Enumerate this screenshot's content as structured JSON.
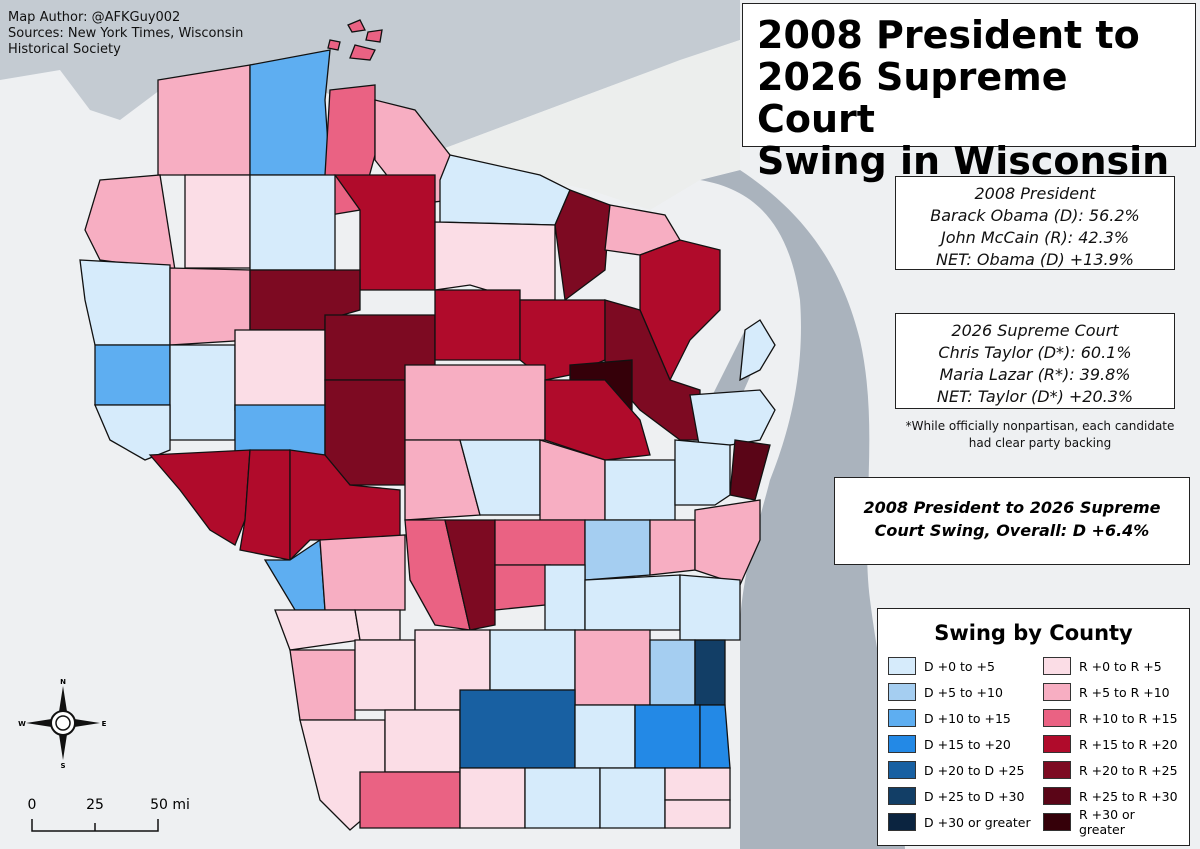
{
  "credits": {
    "author": "Map Author: @AFKGuy002",
    "sources": "Sources: New York Times, Wisconsin Historical Society"
  },
  "title": {
    "line1": "2008 President to",
    "line2": "2026 Supreme Court",
    "line3": "Swing in Wisconsin"
  },
  "president_2008": {
    "heading": "2008 President",
    "dem": "Barack Obama (D): 56.2%",
    "rep": "John McCain (R): 42.3%",
    "net": "NET: Obama (D) +13.9%"
  },
  "supreme_2026": {
    "heading": "2026 Supreme Court",
    "dem": "Chris Taylor (D*): 60.1%",
    "rep": "Maria Lazar (R*): 39.8%",
    "net": "NET: Taylor (D*) +20.3%"
  },
  "note": "*While officially nonpartisan, each candidate had clear party backing",
  "overall": {
    "line1": "2008 President to 2026 Supreme",
    "line2": "Court Swing, Overall: D +6.4%"
  },
  "legend": {
    "title": "Swing by County",
    "dem": [
      {
        "label": "D +0 to +5",
        "color": "#d6ebfb"
      },
      {
        "label": "D +5 to +10",
        "color": "#a5cef1"
      },
      {
        "label": "D +10 to +15",
        "color": "#5eaef1"
      },
      {
        "label": "D +15 to +20",
        "color": "#2389e6"
      },
      {
        "label": "D +20 to D +25",
        "color": "#1860a2"
      },
      {
        "label": "D +25 to D +30",
        "color": "#123e66"
      },
      {
        "label": "D +30 or greater",
        "color": "#0b2440"
      }
    ],
    "rep": [
      {
        "label": "R +0 to R +5",
        "color": "#fbdde6"
      },
      {
        "label": "R +5 to R +10",
        "color": "#f7aec2"
      },
      {
        "label": "R +10 to R +15",
        "color": "#ea6283"
      },
      {
        "label": "R +15 to R +20",
        "color": "#b00b2b"
      },
      {
        "label": "R +20 to R +25",
        "color": "#7d0a22"
      },
      {
        "label": "R +25 to R +30",
        "color": "#5a0517"
      },
      {
        "label": "R +30 or greater",
        "color": "#350009"
      }
    ]
  },
  "compass": {
    "n": "N",
    "s": "S",
    "e": "E",
    "w": "W"
  },
  "scale": {
    "t0": "0",
    "t1": "25",
    "t2": "50 mi"
  }
}
